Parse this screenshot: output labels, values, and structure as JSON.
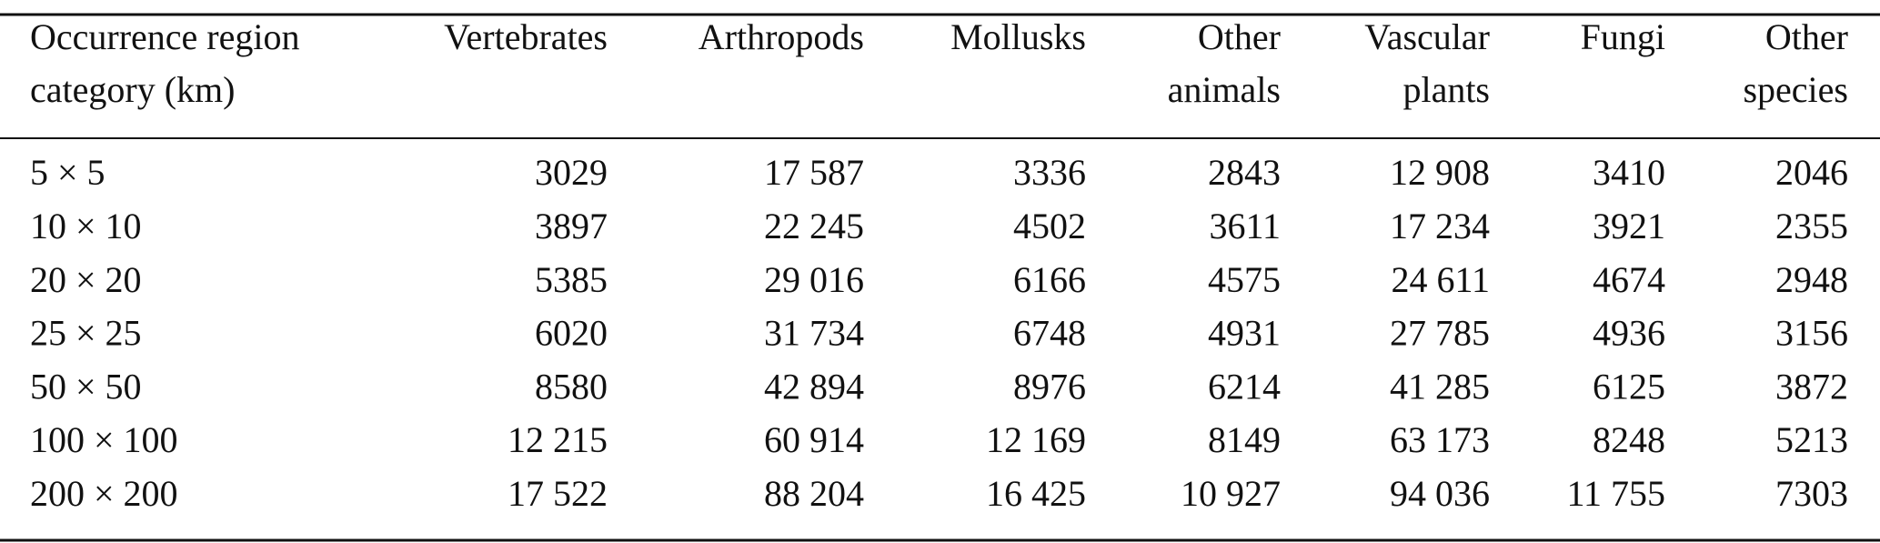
{
  "table": {
    "header": [
      [
        "Occurrence region",
        "category (km)"
      ],
      [
        "Vertebrates"
      ],
      [
        "Arthropods"
      ],
      [
        "Mollusks"
      ],
      [
        "Other",
        "animals"
      ],
      [
        "Vascular",
        "plants"
      ],
      [
        "Fungi"
      ],
      [
        "Other",
        "species"
      ]
    ],
    "rows": [
      [
        "5 × 5",
        "3029",
        "17 587",
        "3336",
        "2843",
        "12 908",
        "3410",
        "2046"
      ],
      [
        "10 × 10",
        "3897",
        "22 245",
        "4502",
        "3611",
        "17 234",
        "3921",
        "2355"
      ],
      [
        "20 × 20",
        "5385",
        "29 016",
        "6166",
        "4575",
        "24 611",
        "4674",
        "2948"
      ],
      [
        "25 × 25",
        "6020",
        "31 734",
        "6748",
        "4931",
        "27 785",
        "4936",
        "3156"
      ],
      [
        "50 × 50",
        "8580",
        "42 894",
        "8976",
        "6214",
        "41 285",
        "6125",
        "3872"
      ],
      [
        "100 × 100",
        "12 215",
        "60 914",
        "12 169",
        "8149",
        "63 173",
        "8248",
        "5213"
      ],
      [
        "200 × 200",
        "17 522",
        "88 204",
        "16 425",
        "10 927",
        "94 036",
        "11 755",
        "7303"
      ]
    ]
  }
}
